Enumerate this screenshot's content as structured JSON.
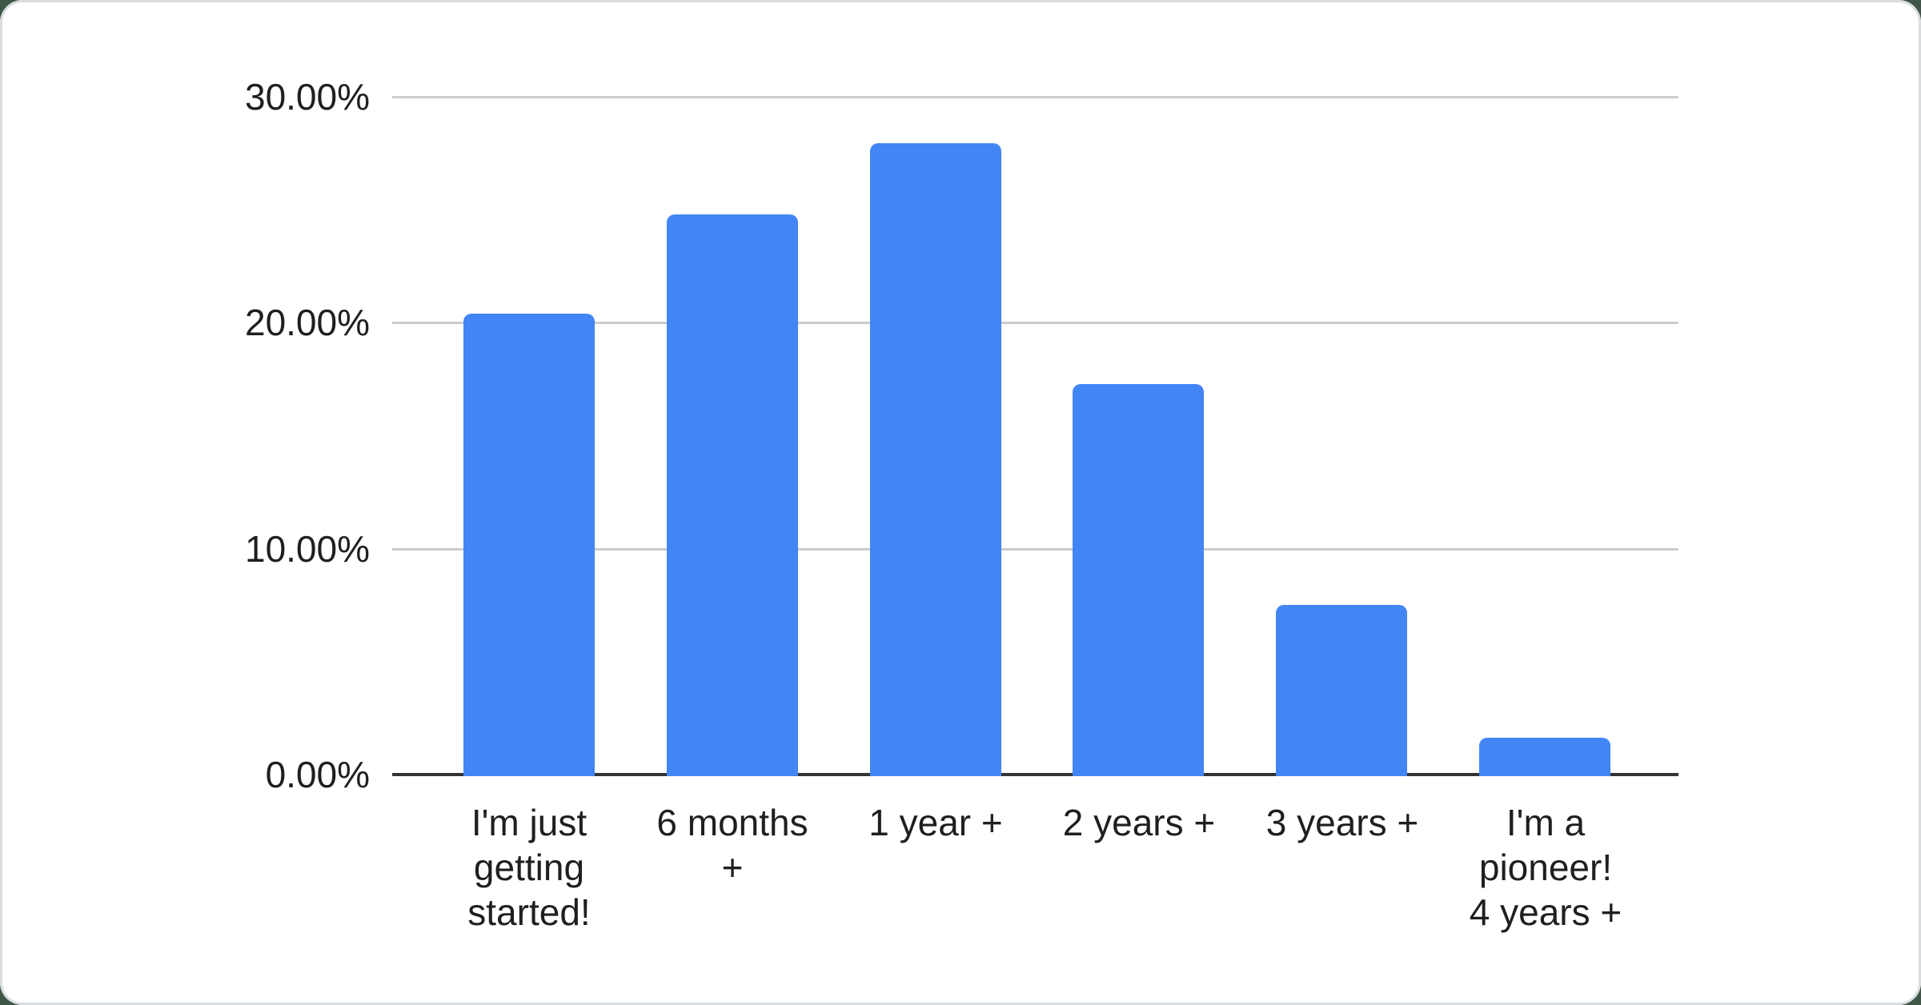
{
  "chart_data": {
    "type": "bar",
    "title": "",
    "xlabel": "",
    "ylabel": "",
    "categories": [
      "I'm just getting started!",
      "6 months +",
      "1 year +",
      "2 years +",
      "3 years +",
      "I'm a pioneer! 4 years +"
    ],
    "values": [
      20.43,
      24.82,
      27.96,
      17.33,
      7.56,
      1.71
    ],
    "unit": "%",
    "ylim": [
      0,
      30
    ],
    "ytick_interval": 10,
    "yticks_display": [
      "30.00%",
      "20.00%",
      "10.00%",
      "0.00%"
    ],
    "xtick_labels_display": [
      "I'm just\ngetting\nstarted!",
      "6 months\n+",
      "1 year +",
      "2 years +",
      "3 years +",
      "I'm a\npioneer!\n4 years +"
    ],
    "legend": "none",
    "grid": true,
    "colors": {
      "bar": "#4285f4",
      "gridline": "#cccccc",
      "axis_line": "#333333",
      "label_text": "#1f1f1f",
      "card_background": "#ffffff",
      "card_border": "#d9dde1",
      "page_corner_background": "#3f5747"
    }
  }
}
